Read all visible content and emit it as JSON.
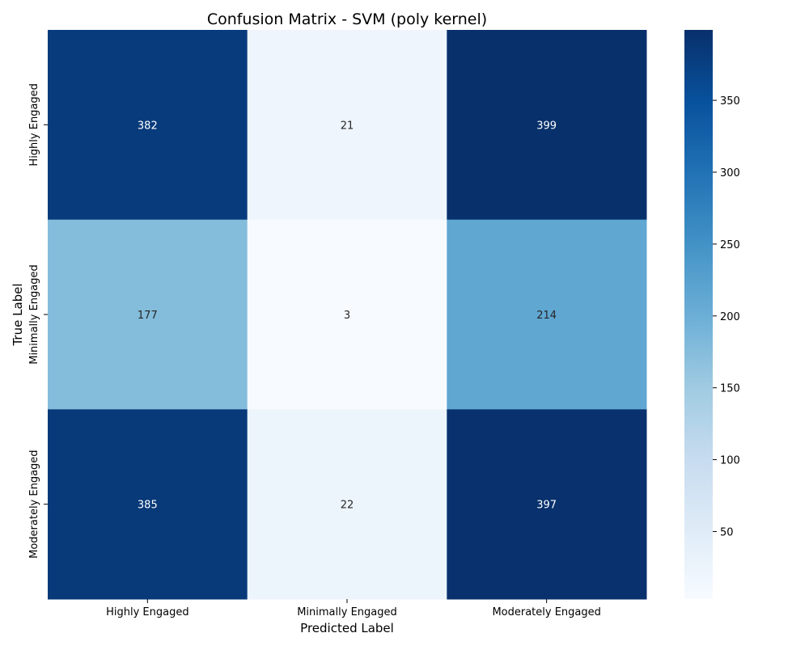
{
  "chart_data": {
    "type": "heatmap",
    "title": "Confusion Matrix - SVM (poly kernel)",
    "xlabel": "Predicted Label",
    "ylabel": "True Label",
    "x_categories": [
      "Highly Engaged",
      "Minimally Engaged",
      "Moderately Engaged"
    ],
    "y_categories": [
      "Highly Engaged",
      "Minimally Engaged",
      "Moderately Engaged"
    ],
    "matrix": [
      [
        382,
        21,
        399
      ],
      [
        177,
        3,
        214
      ],
      [
        385,
        22,
        397
      ]
    ],
    "colormap": "Blues",
    "vmin": 3,
    "vmax": 399,
    "colorbar_ticks": [
      50,
      100,
      150,
      200,
      250,
      300,
      350
    ]
  }
}
